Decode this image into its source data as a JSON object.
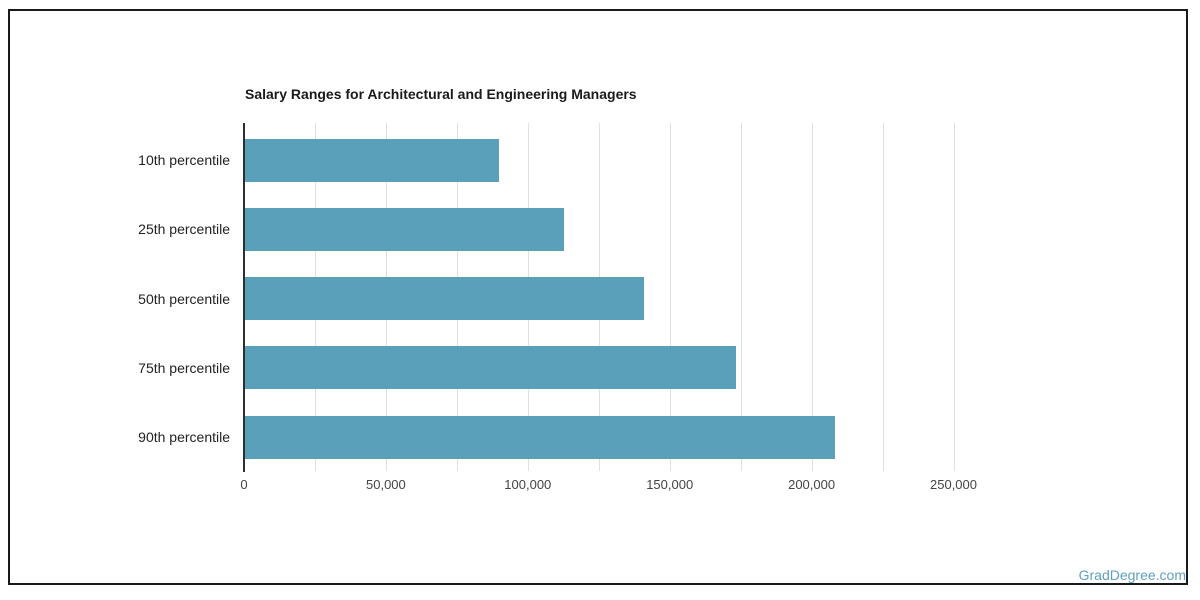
{
  "frame": {
    "background": "#ffffff",
    "border_color": "#1a1a1a"
  },
  "watermark": {
    "label": "GradDegree.com",
    "color": "#5f9fc0"
  },
  "chart_data": {
    "type": "bar",
    "orientation": "horizontal",
    "title": "Salary Ranges for Architectural and Engineering Managers",
    "categories": [
      "10th percentile",
      "25th percentile",
      "50th percentile",
      "75th percentile",
      "90th percentile"
    ],
    "values": [
      89500,
      112500,
      140700,
      173000,
      208000
    ],
    "xlabel": "",
    "ylabel": "",
    "xlim": [
      0,
      270000
    ],
    "x_ticks": [
      {
        "value": 0,
        "label": "0"
      },
      {
        "value": 25000,
        "label": ""
      },
      {
        "value": 50000,
        "label": "50,000"
      },
      {
        "value": 75000,
        "label": ""
      },
      {
        "value": 100000,
        "label": "100,000"
      },
      {
        "value": 125000,
        "label": ""
      },
      {
        "value": 150000,
        "label": "150,000"
      },
      {
        "value": 175000,
        "label": ""
      },
      {
        "value": 200000,
        "label": "200,000"
      },
      {
        "value": 225000,
        "label": ""
      },
      {
        "value": 250000,
        "label": "250,000"
      }
    ],
    "grid": true,
    "legend": "none",
    "bar_color": "#5ba0bb",
    "gridline_color": "#e0e0e0",
    "axis_line_color": "#2e2e2e",
    "title_color": "#1a1a1a",
    "category_label_color": "#222222",
    "tick_label_color": "#444444"
  }
}
